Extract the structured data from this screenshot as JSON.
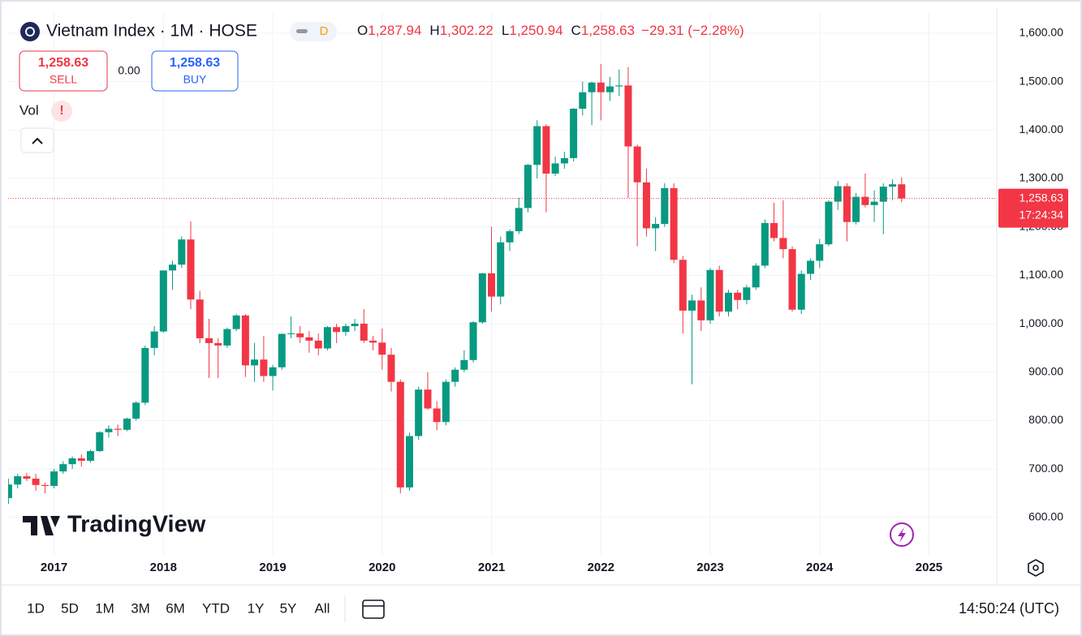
{
  "header": {
    "symbol": "Vietnam Index · 1M · HOSE",
    "session": "D",
    "ohlc": [
      {
        "label": "O",
        "value": "1,287.94"
      },
      {
        "label": "H",
        "value": "1,302.22"
      },
      {
        "label": "L",
        "value": "1,250.94"
      },
      {
        "label": "C",
        "value": "1,258.63"
      }
    ],
    "change": "−29.31 (−2.28%)"
  },
  "trade": {
    "sell_price": "1,258.63",
    "sell": "SELL",
    "spread": "0.00",
    "buy_price": "1,258.63",
    "buy": "BUY"
  },
  "indicator": {
    "name": "Vol",
    "alert": "!"
  },
  "chart_data": {
    "type": "candlestick",
    "x": [
      2016.583,
      2016.667,
      2016.75,
      2016.833,
      2016.917,
      2017,
      2017.083,
      2017.167,
      2017.25,
      2017.333,
      2017.417,
      2017.5,
      2017.583,
      2017.667,
      2017.75,
      2017.833,
      2017.917,
      2018,
      2018.083,
      2018.167,
      2018.25,
      2018.333,
      2018.417,
      2018.5,
      2018.583,
      2018.667,
      2018.75,
      2018.833,
      2018.917,
      2019,
      2019.083,
      2019.167,
      2019.25,
      2019.333,
      2019.417,
      2019.5,
      2019.583,
      2019.667,
      2019.75,
      2019.833,
      2019.917,
      2020,
      2020.083,
      2020.167,
      2020.25,
      2020.333,
      2020.417,
      2020.5,
      2020.583,
      2020.667,
      2020.75,
      2020.833,
      2020.917,
      2021,
      2021.083,
      2021.167,
      2021.25,
      2021.333,
      2021.417,
      2021.5,
      2021.583,
      2021.667,
      2021.75,
      2021.833,
      2021.917,
      2022,
      2022.083,
      2022.167,
      2022.25,
      2022.333,
      2022.417,
      2022.5,
      2022.583,
      2022.667,
      2022.75,
      2022.833,
      2022.917,
      2023,
      2023.083,
      2023.167,
      2023.25,
      2023.333,
      2023.417,
      2023.5,
      2023.583,
      2023.667,
      2023.75,
      2023.833,
      2023.917,
      2024,
      2024.083,
      2024.167,
      2024.25,
      2024.333,
      2024.417,
      2024.5,
      2024.583,
      2024.667,
      2024.75
    ],
    "open": [
      640,
      668,
      685,
      680,
      667,
      665,
      695,
      710,
      722,
      717,
      737,
      776,
      783,
      781,
      804,
      837,
      950,
      984,
      1110,
      1122,
      1174,
      1050,
      970,
      960,
      955,
      989,
      1017,
      914,
      926,
      892,
      910,
      979,
      980,
      972,
      965,
      949,
      993,
      983,
      995,
      1000,
      965,
      961,
      936,
      880,
      662,
      768,
      864,
      825,
      797,
      880,
      905,
      925,
      1003,
      1104,
      1056,
      1168,
      1191,
      1239,
      1328,
      1408,
      1310,
      1331,
      1342,
      1444,
      1478,
      1498,
      1478,
      1490,
      1492,
      1366,
      1292,
      1197,
      1206,
      1280,
      1132,
      1027,
      1048,
      1007,
      1111,
      1025,
      1064,
      1049,
      1075,
      1120,
      1208,
      1177,
      1154,
      1029,
      1103,
      1130,
      1164,
      1252,
      1284,
      1210,
      1262,
      1245,
      1252,
      1283,
      1287.94
    ],
    "high": [
      680,
      690,
      692,
      690,
      672,
      700,
      716,
      726,
      730,
      740,
      778,
      790,
      792,
      806,
      840,
      955,
      995,
      1110,
      1130,
      1180,
      1211,
      1068,
      1010,
      970,
      992,
      1020,
      1020,
      960,
      975,
      915,
      980,
      1015,
      995,
      985,
      980,
      995,
      1000,
      1000,
      1010,
      1030,
      975,
      990,
      950,
      885,
      775,
      870,
      900,
      840,
      885,
      910,
      945,
      1005,
      1105,
      1200,
      1180,
      1195,
      1260,
      1330,
      1420,
      1412,
      1345,
      1355,
      1445,
      1500,
      1500,
      1536,
      1510,
      1525,
      1530,
      1370,
      1320,
      1220,
      1290,
      1290,
      1140,
      1060,
      1075,
      1115,
      1120,
      1070,
      1070,
      1080,
      1125,
      1215,
      1250,
      1255,
      1160,
      1110,
      1135,
      1175,
      1255,
      1295,
      1290,
      1270,
      1310,
      1275,
      1290,
      1298,
      1302.22
    ],
    "low": [
      628,
      660,
      675,
      655,
      650,
      660,
      690,
      700,
      705,
      713,
      735,
      765,
      768,
      778,
      800,
      832,
      935,
      981,
      1070,
      1115,
      1030,
      960,
      888,
      888,
      950,
      985,
      890,
      880,
      880,
      862,
      905,
      970,
      960,
      940,
      935,
      945,
      960,
      975,
      985,
      960,
      945,
      905,
      860,
      650,
      655,
      760,
      822,
      780,
      790,
      870,
      900,
      920,
      1000,
      1025,
      1040,
      1150,
      1185,
      1230,
      1300,
      1230,
      1305,
      1320,
      1335,
      1430,
      1410,
      1420,
      1460,
      1470,
      1260,
      1160,
      1180,
      1150,
      1200,
      1125,
      980,
      875,
      985,
      1000,
      1015,
      1015,
      1030,
      1040,
      1070,
      1115,
      1170,
      1135,
      1025,
      1020,
      1090,
      1115,
      1160,
      1235,
      1170,
      1205,
      1240,
      1210,
      1185,
      1255,
      1250.94
    ],
    "close": [
      668,
      685,
      680,
      667,
      665,
      695,
      710,
      722,
      717,
      737,
      776,
      783,
      781,
      804,
      837,
      950,
      984,
      1110,
      1122,
      1174,
      1050,
      970,
      960,
      955,
      989,
      1017,
      914,
      926,
      892,
      910,
      979,
      980,
      972,
      965,
      949,
      993,
      983,
      995,
      1000,
      965,
      961,
      936,
      880,
      662,
      768,
      864,
      825,
      797,
      880,
      905,
      925,
      1003,
      1104,
      1056,
      1168,
      1191,
      1239,
      1328,
      1408,
      1310,
      1331,
      1342,
      1444,
      1478,
      1498,
      1478,
      1490,
      1492,
      1366,
      1292,
      1197,
      1206,
      1280,
      1132,
      1027,
      1048,
      1007,
      1111,
      1025,
      1064,
      1049,
      1075,
      1120,
      1208,
      1177,
      1154,
      1029,
      1103,
      1130,
      1164,
      1252,
      1284,
      1210,
      1262,
      1245,
      1252,
      1283,
      1287.94,
      1258.63
    ],
    "up_color": "#089981",
    "down_color": "#f23645",
    "xlim": [
      2016.58,
      2025.62
    ],
    "xticks": [
      2017,
      2018,
      2019,
      2020,
      2021,
      2022,
      2023,
      2024,
      2025
    ],
    "ylim": [
      521,
      1645
    ],
    "yticks": [
      {
        "value": 600,
        "label": "600.00"
      },
      {
        "value": 700,
        "label": "700.00"
      },
      {
        "value": 800,
        "label": "800.00"
      },
      {
        "value": 900,
        "label": "900.00"
      },
      {
        "value": 1000,
        "label": "1,000.00"
      },
      {
        "value": 1100,
        "label": "1,100.00"
      },
      {
        "value": 1200,
        "label": "1,200.00"
      },
      {
        "value": 1300,
        "label": "1,300.00"
      },
      {
        "value": 1400,
        "label": "1,400.00"
      },
      {
        "value": 1500,
        "label": "1,500.00"
      },
      {
        "value": 1600,
        "label": "1,600.00"
      }
    ],
    "grid": true,
    "last_price": {
      "value": 1258.63,
      "label": "1,258.63"
    },
    "countdown": "17:24:34"
  },
  "logo": "TradingView",
  "toolbar": {
    "ranges": [
      "1D",
      "5D",
      "1M",
      "3M",
      "6M",
      "YTD",
      "1Y",
      "5Y",
      "All"
    ],
    "time": "14:50:24 (UTC)"
  }
}
